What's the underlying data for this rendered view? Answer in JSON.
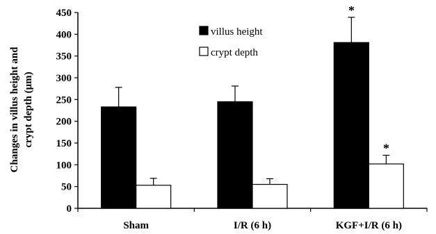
{
  "chart_data": {
    "type": "bar",
    "categories": [
      "Sham",
      "I/R (6 h)",
      "KGF+I/R (6 h)"
    ],
    "series": [
      {
        "name": "villus height",
        "values": [
          233,
          245,
          381
        ],
        "errors": [
          45,
          36,
          58
        ],
        "significance": [
          "",
          "",
          "*"
        ],
        "color": "#000000"
      },
      {
        "name": "crypt depth",
        "values": [
          53,
          55,
          102
        ],
        "errors": [
          16,
          13,
          20
        ],
        "significance": [
          "",
          "",
          "*"
        ],
        "color": "#ffffff"
      }
    ],
    "ylabel_lines": [
      "Changes in villus height and",
      "crypt depth (μm)"
    ],
    "xlabel": "",
    "title": "",
    "ylim": [
      0,
      450
    ],
    "yticks": [
      0,
      50,
      100,
      150,
      200,
      250,
      300,
      350,
      400,
      450
    ],
    "grid": false,
    "legend_position": "top-center"
  }
}
